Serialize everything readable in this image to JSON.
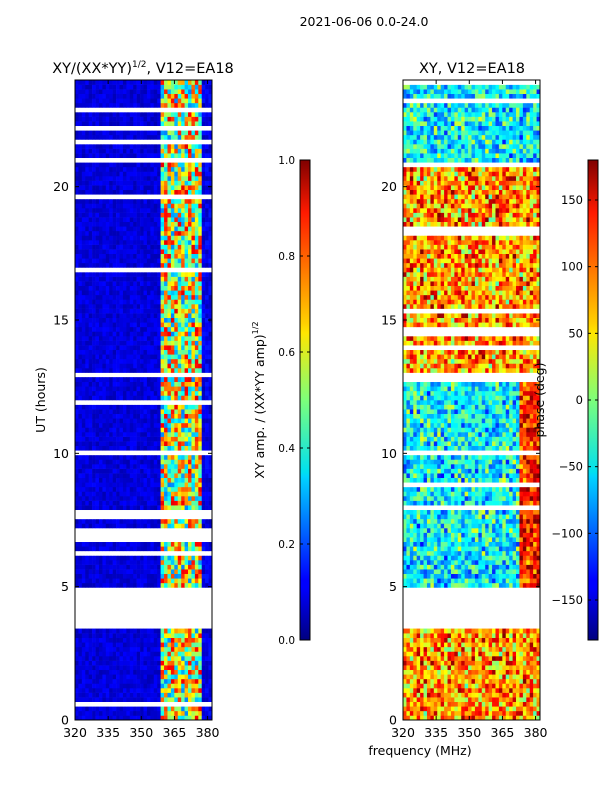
{
  "suptitle": "2021-06-06 0.0-24.0",
  "common_xlabel": "frequency (MHz)",
  "chart_data": [
    {
      "type": "heatmap",
      "title": "XY/(XX*YY)$^{1/2}$, V12=EA18",
      "title_text": "XY/(XX*YY)",
      "title_sup": "1/2",
      "title_rest": ", V12=EA18",
      "xlabel": "",
      "ylabel": "UT (hours)",
      "xlim": [
        320,
        382
      ],
      "ylim": [
        0,
        24
      ],
      "xticks": [
        "320",
        "335",
        "350",
        "365",
        "380"
      ],
      "xtick_values": [
        320,
        335,
        350,
        365,
        380
      ],
      "yticks": [
        "0",
        "5",
        "10",
        "15",
        "20"
      ],
      "ytick_values": [
        0,
        5,
        10,
        15,
        20
      ],
      "gaps_hours": [
        [
          3.4,
          4.9
        ],
        [
          12.9,
          13.05
        ]
      ],
      "colorbar": {
        "label": "XY amp. / (XX*YY amp)$^{1/2}$",
        "label_text": "XY amp. / (XX*YY amp)",
        "label_sup": "1/2",
        "range": [
          0.0,
          1.0
        ],
        "ticks": [
          "0.0",
          "0.2",
          "0.4",
          "0.6",
          "0.8",
          "1.0"
        ],
        "tick_values": [
          0.0,
          0.2,
          0.4,
          0.6,
          0.8,
          1.0
        ],
        "colormap": "jet"
      }
    },
    {
      "type": "heatmap",
      "title": "XY, V12=EA18",
      "xlabel": "frequency (MHz)",
      "ylabel": "",
      "xlim": [
        320,
        382
      ],
      "ylim": [
        0,
        24
      ],
      "xticks": [
        "320",
        "335",
        "350",
        "365",
        "380"
      ],
      "xtick_values": [
        320,
        335,
        350,
        365,
        380
      ],
      "yticks": [
        "0",
        "5",
        "10",
        "15",
        "20"
      ],
      "ytick_values": [
        0,
        5,
        10,
        15,
        20
      ],
      "gaps_hours": [
        [
          3.4,
          4.9
        ],
        [
          12.9,
          13.05
        ]
      ],
      "colorbar": {
        "label": "phase (deg)",
        "range": [
          -180,
          180
        ],
        "ticks": [
          "−150",
          "−100",
          "−50",
          "0",
          "50",
          "100",
          "150"
        ],
        "tick_values": [
          -150,
          -100,
          -50,
          0,
          50,
          100,
          150
        ],
        "colormap": "jet"
      }
    }
  ]
}
